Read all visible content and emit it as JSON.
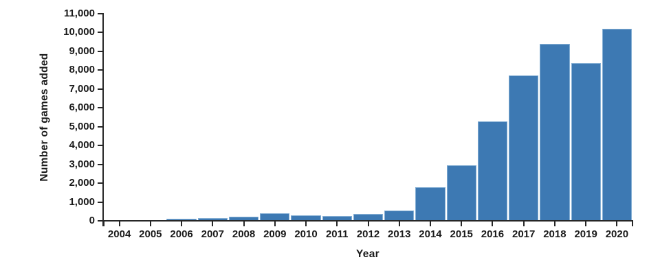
{
  "chart_data": {
    "type": "bar",
    "title": "",
    "xlabel": "Year",
    "ylabel": "Number of games added",
    "categories": [
      "2004",
      "2005",
      "2006",
      "2007",
      "2008",
      "2009",
      "2010",
      "2011",
      "2012",
      "2013",
      "2014",
      "2015",
      "2016",
      "2017",
      "2018",
      "2019",
      "2020"
    ],
    "values": [
      20,
      20,
      100,
      145,
      230,
      400,
      290,
      270,
      380,
      560,
      1780,
      2960,
      5280,
      7710,
      9380,
      8370,
      10190
    ],
    "ylim": [
      0,
      11000
    ],
    "ytick_step": 1000,
    "grid": false,
    "legend": "none"
  },
  "style": {
    "bar_fill": "#3d79b3",
    "bar_edge": "#85afd4",
    "axis_color": "#262626",
    "text_color": "#1a1a1a",
    "background": "#ffffff"
  }
}
